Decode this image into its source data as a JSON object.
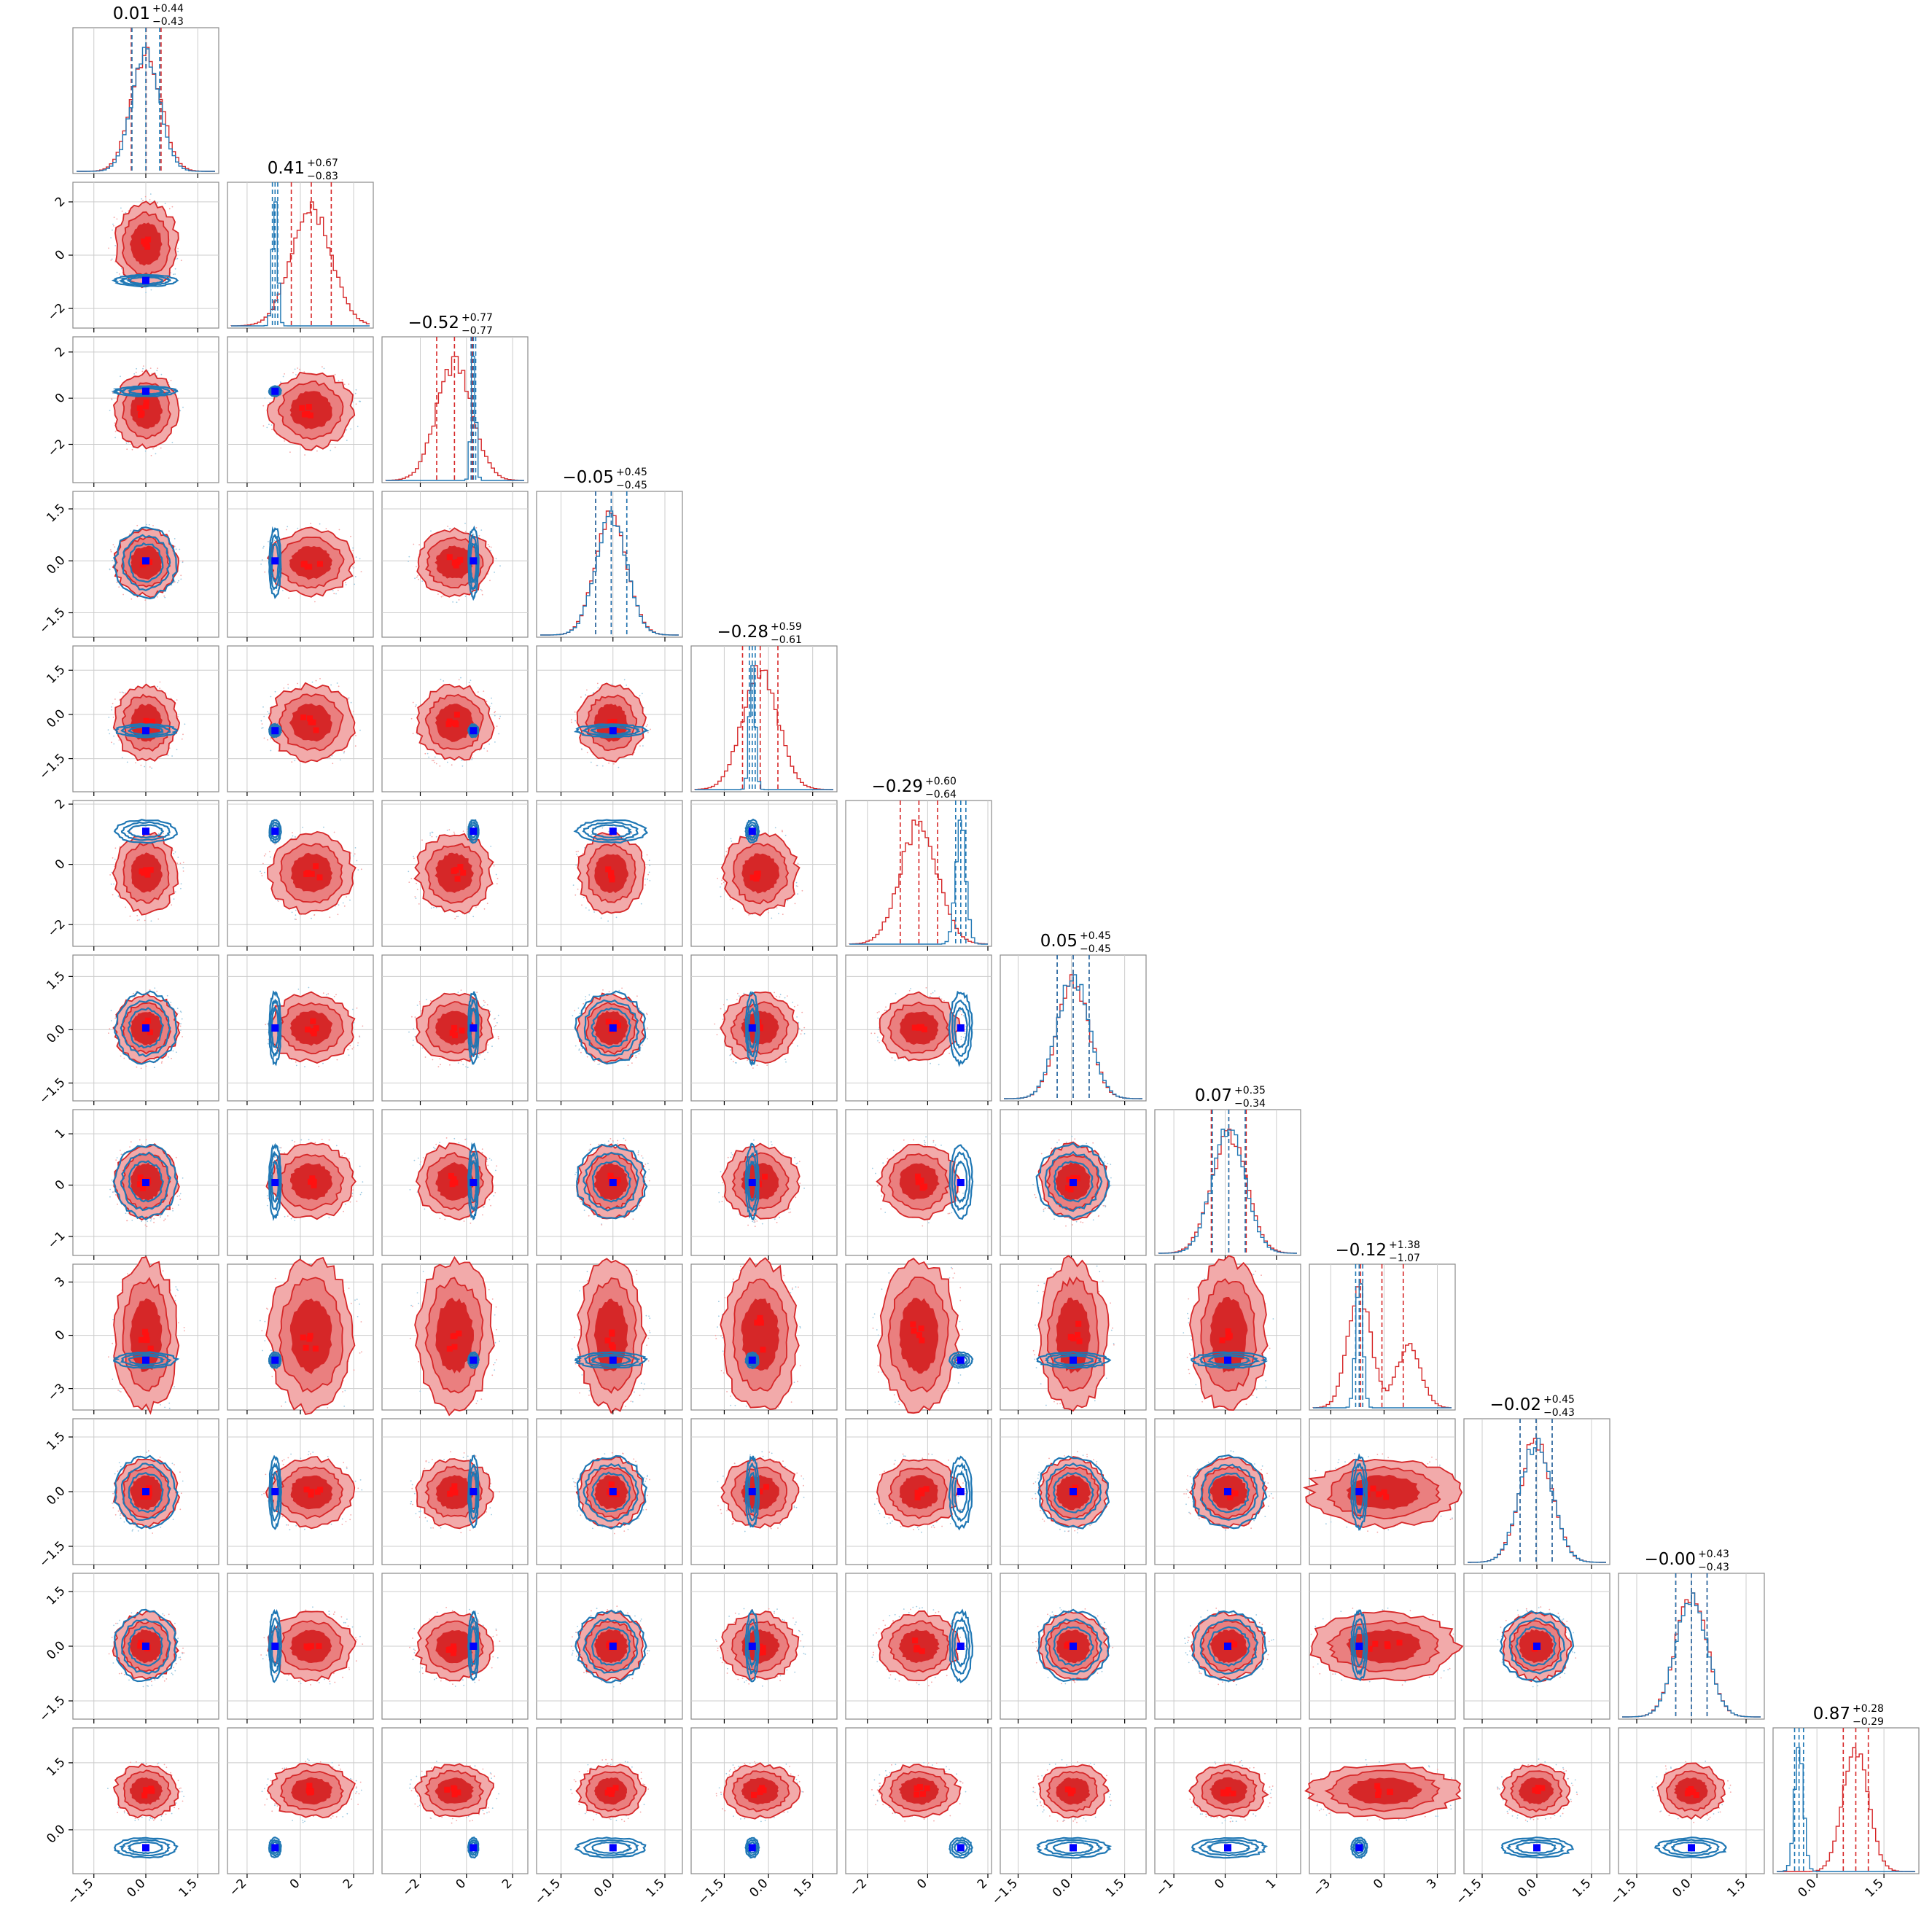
{
  "chart_data": {
    "type": "corner",
    "n_params": 12,
    "series": [
      {
        "name": "",
        "color": "#d62728",
        "role": "posterior"
      },
      {
        "name": "",
        "color": "#1f77b4",
        "role": "reference"
      }
    ],
    "title_values": [
      {
        "median": "0.01",
        "plus": "+0.44",
        "minus": "−0.43"
      },
      {
        "median": "0.41",
        "plus": "+0.67",
        "minus": "−0.83"
      },
      {
        "median": "−0.52",
        "plus": "+0.77",
        "minus": "−0.77"
      },
      {
        "median": "−0.05",
        "plus": "+0.45",
        "minus": "−0.45"
      },
      {
        "median": "−0.28",
        "plus": "+0.59",
        "minus": "−0.61"
      },
      {
        "median": "−0.29",
        "plus": "+0.60",
        "minus": "−0.64"
      },
      {
        "median": "0.05",
        "plus": "+0.45",
        "minus": "−0.45"
      },
      {
        "median": "0.07",
        "plus": "+0.35",
        "minus": "−0.34"
      },
      {
        "median": "−0.12",
        "plus": "+1.38",
        "minus": "−1.07"
      },
      {
        "median": "−0.02",
        "plus": "+0.45",
        "minus": "−0.43"
      },
      {
        "median": "−0.00",
        "plus": "+0.43",
        "minus": "−0.43"
      },
      {
        "median": "0.87",
        "plus": "+0.28",
        "minus": "−0.29"
      }
    ],
    "params": [
      {
        "range": [
          -2.0,
          2.0
        ],
        "ticks": [
          -1.5,
          0.0,
          1.5
        ],
        "tick_labels": [
          "−1.5",
          "0.0",
          "1.5"
        ],
        "red": {
          "mean": 0.01,
          "sd": 0.43
        },
        "blue": {
          "mean": 0.0,
          "sd": 0.4
        },
        "truth": 0.0
      },
      {
        "range": [
          -2.6,
          2.6
        ],
        "ticks": [
          -2,
          0,
          2
        ],
        "tick_labels": [
          "−2",
          "0",
          "2"
        ],
        "red": {
          "mean": 0.41,
          "sd": 0.75
        },
        "blue": {
          "mean": -0.95,
          "sd": 0.1
        },
        "truth": -0.95
      },
      {
        "range": [
          -3.5,
          2.5
        ],
        "ticks": [
          -2,
          0,
          2
        ],
        "tick_labels": [
          "−2",
          "0",
          "2"
        ],
        "red": {
          "mean": -0.52,
          "sd": 0.77
        },
        "blue": {
          "mean": 0.3,
          "sd": 0.1
        },
        "truth": 0.3
      },
      {
        "range": [
          -2.1,
          1.9
        ],
        "ticks": [
          -1.5,
          0.0,
          1.5
        ],
        "tick_labels": [
          "−1.5",
          "0.0",
          "1.5"
        ],
        "red": {
          "mean": -0.05,
          "sd": 0.45
        },
        "blue": {
          "mean": -0.05,
          "sd": 0.45
        },
        "truth": 0.0
      },
      {
        "range": [
          -2.5,
          2.2
        ],
        "ticks": [
          -1.5,
          0.0,
          1.5
        ],
        "tick_labels": [
          "−1.5",
          "0.0",
          "1.5"
        ],
        "red": {
          "mean": -0.28,
          "sd": 0.6
        },
        "blue": {
          "mean": -0.55,
          "sd": 0.1
        },
        "truth": -0.55
      },
      {
        "range": [
          -2.6,
          2.0
        ],
        "ticks": [
          -2,
          0,
          2
        ],
        "tick_labels": [
          "−2",
          "0",
          "2"
        ],
        "red": {
          "mean": -0.29,
          "sd": 0.62
        },
        "blue": {
          "mean": 1.1,
          "sd": 0.17
        },
        "truth": 1.1
      },
      {
        "range": [
          -1.9,
          2.0
        ],
        "ticks": [
          -1.5,
          0.0,
          1.5
        ],
        "tick_labels": [
          "−1.5",
          "0.0",
          "1.5"
        ],
        "red": {
          "mean": 0.05,
          "sd": 0.45
        },
        "blue": {
          "mean": 0.05,
          "sd": 0.45
        },
        "truth": 0.05
      },
      {
        "range": [
          -1.3,
          1.4
        ],
        "ticks": [
          -1,
          0,
          1
        ],
        "tick_labels": [
          "−1",
          "0",
          "1"
        ],
        "red": {
          "mean": 0.07,
          "sd": 0.34
        },
        "blue": {
          "mean": 0.07,
          "sd": 0.32
        },
        "truth": 0.05
      },
      {
        "range": [
          -4.0,
          3.8
        ],
        "ticks": [
          -3,
          0,
          3
        ],
        "tick_labels": [
          "−3",
          "0",
          "3"
        ],
        "red": {
          "mean": -0.12,
          "sd": 1.2,
          "bimodal": [
            -1.4,
            1.4
          ]
        },
        "blue": {
          "mean": -1.4,
          "sd": 0.2
        },
        "truth": -1.4
      },
      {
        "range": [
          -1.9,
          1.9
        ],
        "ticks": [
          -1.5,
          0.0,
          1.5
        ],
        "tick_labels": [
          "−1.5",
          "0.0",
          "1.5"
        ],
        "red": {
          "mean": -0.02,
          "sd": 0.44
        },
        "blue": {
          "mean": -0.02,
          "sd": 0.44
        },
        "truth": 0.0
      },
      {
        "range": [
          -1.9,
          1.9
        ],
        "ticks": [
          -1.5,
          0.0,
          1.5
        ],
        "tick_labels": [
          "−1.5",
          "0.0",
          "1.5"
        ],
        "red": {
          "mean": 0.0,
          "sd": 0.43
        },
        "blue": {
          "mean": 0.0,
          "sd": 0.43
        },
        "truth": 0.0
      },
      {
        "range": [
          -0.9,
          2.2
        ],
        "ticks": [
          0.0,
          1.5
        ],
        "tick_labels": [
          "0.0",
          "1.5"
        ],
        "red": {
          "mean": 0.87,
          "sd": 0.28
        },
        "blue": {
          "mean": -0.4,
          "sd": 0.1
        },
        "truth": -0.4
      }
    ]
  }
}
